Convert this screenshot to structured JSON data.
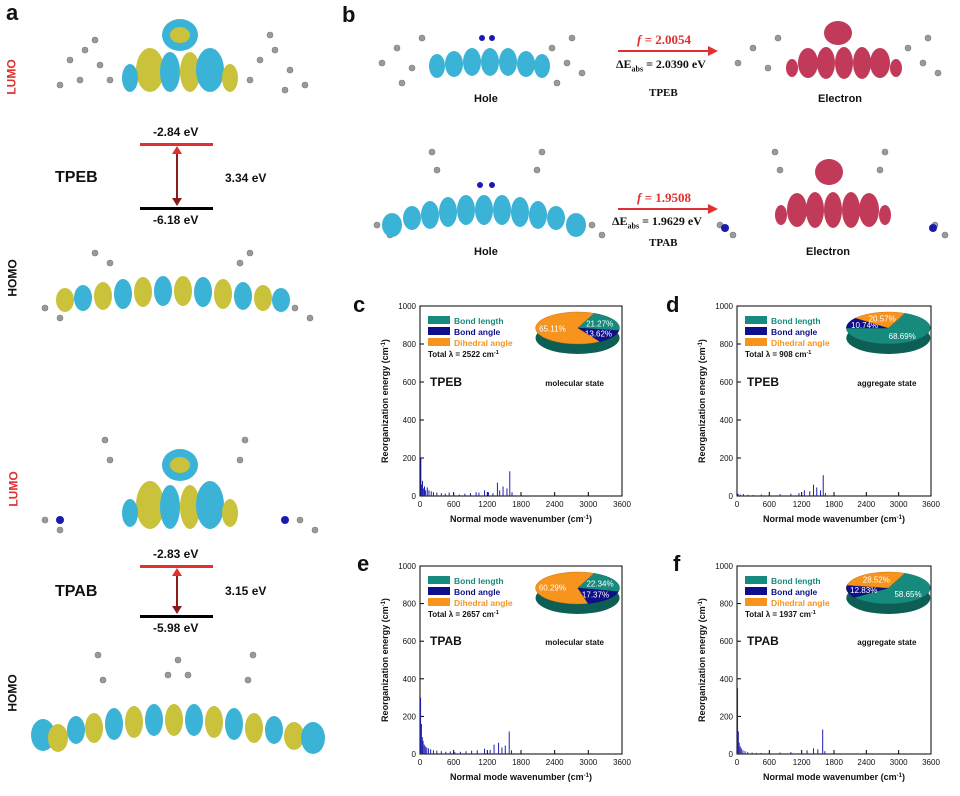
{
  "panels": {
    "a": "a",
    "b": "b",
    "c": "c",
    "d": "d",
    "e": "e",
    "f": "f"
  },
  "panel_a": {
    "tpeb": {
      "name": "TPEB",
      "lumo_label": "LUMO",
      "homo_label": "HOMO",
      "lumo_energy": "-2.84 eV",
      "homo_energy": "-6.18 eV",
      "gap": "3.34 eV"
    },
    "tpab": {
      "name": "TPAB",
      "lumo_label": "LUMO",
      "homo_label": "HOMO",
      "lumo_energy": "-2.83 eV",
      "homo_energy": "-5.98 eV",
      "gap": "3.15 eV"
    }
  },
  "panel_b": {
    "tpeb": {
      "hole": "Hole",
      "electron": "Electron",
      "f_symbol": "f",
      "f_value": "= 2.0054",
      "de_symbol": "ΔE",
      "de_sub": "abs",
      "de_value": "= 2.0390 eV",
      "name": "TPEB"
    },
    "tpab": {
      "hole": "Hole",
      "electron": "Electron",
      "f_symbol": "f",
      "f_value": "= 1.9508",
      "de_symbol": "ΔE",
      "de_sub": "abs",
      "de_value": "= 1.9629 eV",
      "name": "TPAB"
    }
  },
  "colors": {
    "lumo_red": "#e03030",
    "arrow_darkred": "#8b1a1a",
    "teal": "#168a7c",
    "navy": "#0f0f8c",
    "orange": "#f7941d",
    "spectrum": "#1f1fb0",
    "hole_blue": "#3bb3d6",
    "hole_yellow": "#c9c23a",
    "electron_red": "#c23a5a"
  },
  "chart_data": [
    {
      "id": "c",
      "type": "bar",
      "compound": "TPEB",
      "state": "molecular state",
      "total_label": "Total λ = 2522 cm",
      "total_sup": "-1",
      "ylabel": "Reorganization energy (cm",
      "ylabel_sup": "-1",
      "ylabel_end": ")",
      "xlabel": "Normal mode wavenumber (cm",
      "xlabel_sup": "-1",
      "xlabel_end": ")",
      "xlim": [
        0,
        3600
      ],
      "ylim": [
        0,
        1000
      ],
      "xticks": [
        "0",
        "600",
        "1200",
        "1800",
        "2400",
        "3000",
        "3600"
      ],
      "yticks": [
        "0",
        "200",
        "400",
        "600",
        "800",
        "1000"
      ],
      "legend": [
        "Bond length",
        "Bond angle",
        "Dihedral angle"
      ],
      "pie": [
        {
          "name": "Bond length",
          "value": 21.27,
          "label": "21.27%"
        },
        {
          "name": "Bond angle",
          "value": 13.62,
          "label": "13.62%"
        },
        {
          "name": "Dihedral angle",
          "value": 65.11,
          "label": "65.11%"
        }
      ],
      "peaks": [
        [
          15,
          200
        ],
        [
          30,
          60
        ],
        [
          45,
          80
        ],
        [
          60,
          40
        ],
        [
          80,
          50
        ],
        [
          100,
          30
        ],
        [
          130,
          45
        ],
        [
          160,
          30
        ],
        [
          200,
          25
        ],
        [
          240,
          20
        ],
        [
          300,
          18
        ],
        [
          380,
          15
        ],
        [
          450,
          12
        ],
        [
          520,
          18
        ],
        [
          600,
          10
        ],
        [
          700,
          8
        ],
        [
          800,
          12
        ],
        [
          900,
          15
        ],
        [
          1000,
          20
        ],
        [
          1050,
          18
        ],
        [
          1150,
          30
        ],
        [
          1220,
          20
        ],
        [
          1300,
          15
        ],
        [
          1380,
          70
        ],
        [
          1420,
          30
        ],
        [
          1480,
          50
        ],
        [
          1550,
          40
        ],
        [
          1600,
          130
        ],
        [
          1640,
          20
        ]
      ]
    },
    {
      "id": "d",
      "type": "bar",
      "compound": "TPEB",
      "state": "aggregate state",
      "total_label": "Total λ = 908 cm",
      "total_sup": "-1",
      "ylabel": "Reorganization energy (cm",
      "ylabel_sup": "-1",
      "ylabel_end": ")",
      "xlabel": "Normal mode wavenumber (cm",
      "xlabel_sup": "-1",
      "xlabel_end": ")",
      "xlim": [
        0,
        3600
      ],
      "ylim": [
        0,
        1000
      ],
      "xticks": [
        "0",
        "600",
        "1200",
        "1800",
        "2400",
        "3000",
        "3600"
      ],
      "yticks": [
        "0",
        "200",
        "400",
        "600",
        "800",
        "1000"
      ],
      "legend": [
        "Bond length",
        "Bond angle",
        "Dihedral angle"
      ],
      "pie": [
        {
          "name": "Bond length",
          "value": 68.69,
          "label": "68.69%"
        },
        {
          "name": "Bond angle",
          "value": 10.74,
          "label": "10.74%"
        },
        {
          "name": "Dihedral angle",
          "value": 20.57,
          "label": "20.57%"
        }
      ],
      "peaks": [
        [
          20,
          12
        ],
        [
          60,
          8
        ],
        [
          120,
          10
        ],
        [
          200,
          6
        ],
        [
          300,
          5
        ],
        [
          450,
          8
        ],
        [
          600,
          6
        ],
        [
          800,
          10
        ],
        [
          1000,
          12
        ],
        [
          1150,
          15
        ],
        [
          1250,
          30
        ],
        [
          1350,
          25
        ],
        [
          1420,
          60
        ],
        [
          1480,
          45
        ],
        [
          1550,
          30
        ],
        [
          1600,
          110
        ],
        [
          1640,
          15
        ]
      ]
    },
    {
      "id": "e",
      "type": "bar",
      "compound": "TPAB",
      "state": "molecular state",
      "total_label": "Total λ = 2657 cm",
      "total_sup": "-1",
      "ylabel": "Reorganization energy (cm",
      "ylabel_sup": "-1",
      "ylabel_end": ")",
      "xlabel": "Normal mode wavenumber (cm",
      "xlabel_sup": "-1",
      "xlabel_end": ")",
      "xlim": [
        0,
        3600
      ],
      "ylim": [
        0,
        1000
      ],
      "xticks": [
        "0",
        "600",
        "1200",
        "1800",
        "2400",
        "3000",
        "3600"
      ],
      "yticks": [
        "0",
        "200",
        "400",
        "600",
        "800",
        "1000"
      ],
      "legend": [
        "Bond length",
        "Bond angle",
        "Dihedral angle"
      ],
      "pie": [
        {
          "name": "Bond length",
          "value": 22.34,
          "label": "22.34%"
        },
        {
          "name": "Bond angle",
          "value": 17.37,
          "label": "17.37%"
        },
        {
          "name": "Dihedral angle",
          "value": 60.29,
          "label": "60.29%"
        }
      ],
      "peaks": [
        [
          10,
          300
        ],
        [
          25,
          160
        ],
        [
          40,
          90
        ],
        [
          55,
          70
        ],
        [
          75,
          50
        ],
        [
          95,
          40
        ],
        [
          120,
          35
        ],
        [
          150,
          30
        ],
        [
          190,
          25
        ],
        [
          240,
          20
        ],
        [
          300,
          18
        ],
        [
          380,
          15
        ],
        [
          460,
          12
        ],
        [
          540,
          14
        ],
        [
          620,
          10
        ],
        [
          720,
          12
        ],
        [
          820,
          15
        ],
        [
          920,
          18
        ],
        [
          1020,
          20
        ],
        [
          1150,
          28
        ],
        [
          1250,
          22
        ],
        [
          1320,
          50
        ],
        [
          1400,
          60
        ],
        [
          1460,
          35
        ],
        [
          1520,
          45
        ],
        [
          1590,
          120
        ],
        [
          1630,
          20
        ]
      ]
    },
    {
      "id": "f",
      "type": "bar",
      "compound": "TPAB",
      "state": "aggregate state",
      "total_label": "Total λ = 1937 cm",
      "total_sup": "-1",
      "ylabel": "Reorganization energy (cm",
      "ylabel_sup": "-1",
      "ylabel_end": ")",
      "xlabel": "Normal mode wavenumber (cm",
      "xlabel_sup": "-1",
      "xlabel_end": ")",
      "xlim": [
        0,
        3600
      ],
      "ylim": [
        0,
        1000
      ],
      "xticks": [
        "0",
        "600",
        "1200",
        "1800",
        "2400",
        "3000",
        "3600"
      ],
      "yticks": [
        "0",
        "200",
        "400",
        "600",
        "800",
        "1000"
      ],
      "legend": [
        "Bond length",
        "Bond angle",
        "Dihedral angle"
      ],
      "pie": [
        {
          "name": "Bond length",
          "value": 58.65,
          "label": "58.65%"
        },
        {
          "name": "Bond angle",
          "value": 12.83,
          "label": "12.83%"
        },
        {
          "name": "Dihedral angle",
          "value": 28.52,
          "label": "28.52%"
        }
      ],
      "peaks": [
        [
          10,
          350
        ],
        [
          25,
          120
        ],
        [
          40,
          60
        ],
        [
          60,
          40
        ],
        [
          80,
          30
        ],
        [
          110,
          20
        ],
        [
          150,
          15
        ],
        [
          200,
          10
        ],
        [
          280,
          8
        ],
        [
          360,
          6
        ],
        [
          450,
          5
        ],
        [
          600,
          6
        ],
        [
          800,
          8
        ],
        [
          1000,
          10
        ],
        [
          1200,
          12
        ],
        [
          1300,
          20
        ],
        [
          1420,
          30
        ],
        [
          1500,
          25
        ],
        [
          1590,
          130
        ],
        [
          1630,
          15
        ]
      ]
    }
  ]
}
